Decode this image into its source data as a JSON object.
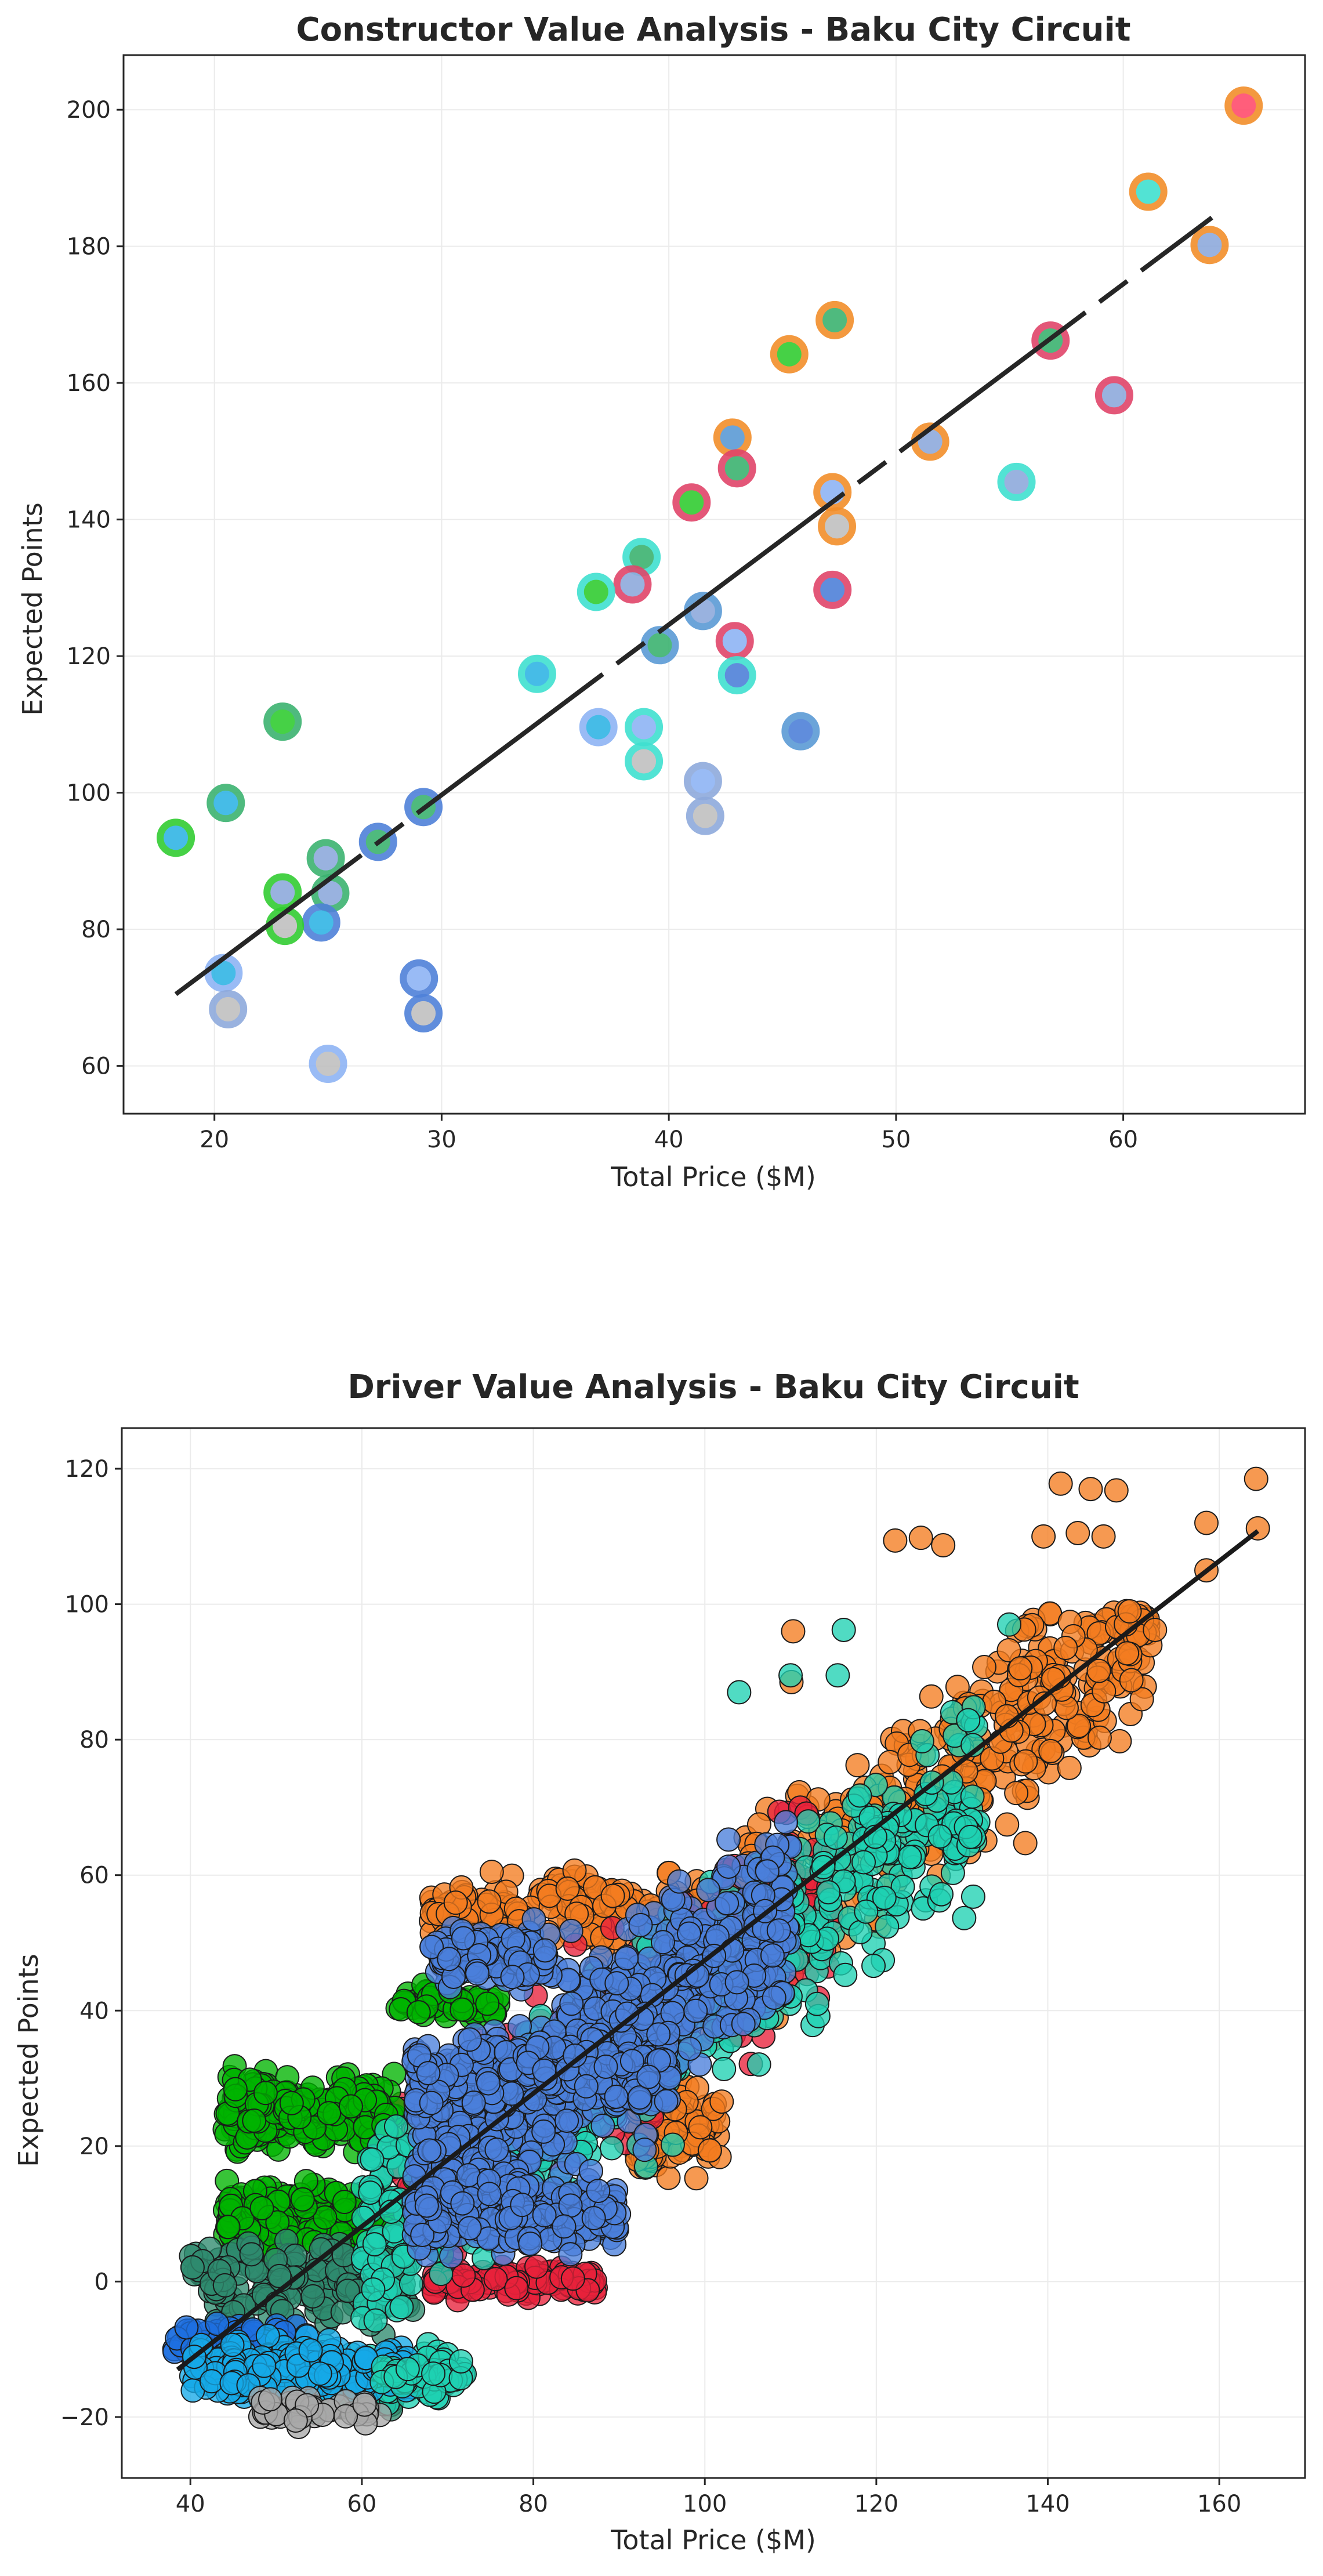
{
  "chart_data": [
    {
      "type": "scatter",
      "title": "Constructor Value Analysis - Baku City Circuit",
      "xlabel": "Total Price ($M)",
      "ylabel": "Expected Points",
      "xlim": [
        16,
        68
      ],
      "ylim": [
        53,
        208
      ],
      "xticks": [
        20,
        30,
        40,
        50,
        60
      ],
      "yticks": [
        60,
        80,
        100,
        120,
        140,
        160,
        180,
        200
      ],
      "grid": true,
      "trendline": {
        "x": [
          18.3,
          63.9
        ],
        "y": [
          70.5,
          184.2
        ],
        "style": "dashed-solid"
      },
      "points": [
        {
          "x": 65.3,
          "y": 200.6,
          "ring": "#f28e2b",
          "fill": "#ff4d6d"
        },
        {
          "x": 61.1,
          "y": 188.0,
          "ring": "#f28e2b",
          "fill": "#40e0d0"
        },
        {
          "x": 63.8,
          "y": 180.2,
          "ring": "#f28e2b",
          "fill": "#8faadc"
        },
        {
          "x": 47.3,
          "y": 169.2,
          "ring": "#f28e2b",
          "fill": "#3cb371"
        },
        {
          "x": 56.8,
          "y": 166.2,
          "ring": "#e0456a",
          "fill": "#3cb371"
        },
        {
          "x": 45.3,
          "y": 164.2,
          "ring": "#f28e2b",
          "fill": "#32cd32"
        },
        {
          "x": 59.6,
          "y": 158.2,
          "ring": "#e0456a",
          "fill": "#8faadc"
        },
        {
          "x": 42.8,
          "y": 152.0,
          "ring": "#f28e2b",
          "fill": "#5b9bd5"
        },
        {
          "x": 51.5,
          "y": 151.4,
          "ring": "#f28e2b",
          "fill": "#8faadc"
        },
        {
          "x": 43.0,
          "y": 147.5,
          "ring": "#e0456a",
          "fill": "#3cb371"
        },
        {
          "x": 55.3,
          "y": 145.5,
          "ring": "#40e0d0",
          "fill": "#8faadc"
        },
        {
          "x": 47.2,
          "y": 144.0,
          "ring": "#f28e2b",
          "fill": "#8fb4f5"
        },
        {
          "x": 41.0,
          "y": 142.5,
          "ring": "#e0456a",
          "fill": "#32cd32"
        },
        {
          "x": 47.4,
          "y": 139.0,
          "ring": "#f28e2b",
          "fill": "#c0c0c0"
        },
        {
          "x": 38.8,
          "y": 134.5,
          "ring": "#40e0d0",
          "fill": "#3cb371"
        },
        {
          "x": 38.4,
          "y": 130.5,
          "ring": "#e0456a",
          "fill": "#8faadc"
        },
        {
          "x": 47.2,
          "y": 129.7,
          "ring": "#e0456a",
          "fill": "#4f81d9"
        },
        {
          "x": 36.8,
          "y": 129.4,
          "ring": "#40e0d0",
          "fill": "#32cd32"
        },
        {
          "x": 41.5,
          "y": 126.6,
          "ring": "#5b9bd5",
          "fill": "#8faadc"
        },
        {
          "x": 42.9,
          "y": 122.2,
          "ring": "#e0456a",
          "fill": "#8fb4f5"
        },
        {
          "x": 39.6,
          "y": 121.6,
          "ring": "#5b9bd5",
          "fill": "#3cb371"
        },
        {
          "x": 34.2,
          "y": 117.4,
          "ring": "#40e0d0",
          "fill": "#33b5e5"
        },
        {
          "x": 43.0,
          "y": 117.2,
          "ring": "#40e0d0",
          "fill": "#4f81d9"
        },
        {
          "x": 36.9,
          "y": 109.6,
          "ring": "#8fb4f5",
          "fill": "#33b5e5"
        },
        {
          "x": 38.9,
          "y": 109.6,
          "ring": "#40e0d0",
          "fill": "#8fb4f5"
        },
        {
          "x": 45.8,
          "y": 109.0,
          "ring": "#5b9bd5",
          "fill": "#4f81d9"
        },
        {
          "x": 23.0,
          "y": 110.4,
          "ring": "#3cb371",
          "fill": "#32cd32"
        },
        {
          "x": 38.9,
          "y": 104.6,
          "ring": "#40e0d0",
          "fill": "#c0c0c0"
        },
        {
          "x": 41.5,
          "y": 101.7,
          "ring": "#8faadc",
          "fill": "#8fb4f5"
        },
        {
          "x": 20.5,
          "y": 98.5,
          "ring": "#3cb371",
          "fill": "#33b5e5"
        },
        {
          "x": 29.2,
          "y": 97.9,
          "ring": "#4f81d9",
          "fill": "#3cb371"
        },
        {
          "x": 41.6,
          "y": 96.6,
          "ring": "#8faadc",
          "fill": "#c0c0c0"
        },
        {
          "x": 18.3,
          "y": 93.4,
          "ring": "#32cd32",
          "fill": "#33b5e5"
        },
        {
          "x": 27.2,
          "y": 92.8,
          "ring": "#4f81d9",
          "fill": "#3cb371"
        },
        {
          "x": 24.9,
          "y": 90.4,
          "ring": "#3cb371",
          "fill": "#8faadc"
        },
        {
          "x": 23.0,
          "y": 85.4,
          "ring": "#32cd32",
          "fill": "#8faadc"
        },
        {
          "x": 25.1,
          "y": 85.3,
          "ring": "#3cb371",
          "fill": "#8faadc"
        },
        {
          "x": 24.7,
          "y": 81.0,
          "ring": "#4f81d9",
          "fill": "#33b5e5"
        },
        {
          "x": 23.1,
          "y": 80.5,
          "ring": "#32cd32",
          "fill": "#c0c0c0"
        },
        {
          "x": 20.4,
          "y": 73.6,
          "ring": "#8fb4f5",
          "fill": "#33b5e5"
        },
        {
          "x": 29.0,
          "y": 72.8,
          "ring": "#4f81d9",
          "fill": "#8fb4f5"
        },
        {
          "x": 20.6,
          "y": 68.3,
          "ring": "#8faadc",
          "fill": "#c0c0c0"
        },
        {
          "x": 29.2,
          "y": 67.7,
          "ring": "#4f81d9",
          "fill": "#c0c0c0"
        },
        {
          "x": 25.0,
          "y": 60.3,
          "ring": "#8fb4f5",
          "fill": "#c0c0c0"
        }
      ]
    },
    {
      "type": "scatter",
      "title": "Driver Value Analysis - Baku City Circuit",
      "xlabel": "Total Price ($M)",
      "ylabel": "Expected Points",
      "xlim": [
        32,
        170
      ],
      "ylim": [
        -29,
        126
      ],
      "xticks": [
        40,
        60,
        80,
        100,
        120,
        140,
        160
      ],
      "yticks": [
        -20,
        0,
        20,
        40,
        60,
        80,
        100,
        120
      ],
      "grid": true,
      "trendline": {
        "x": [
          38.5,
          164.5
        ],
        "y": [
          -13.0,
          110.8
        ]
      },
      "clusters": [
        {
          "color": "#f47c20",
          "n": 560,
          "xmin": 86,
          "xmax": 152,
          "ymin": 30,
          "ymax": 99,
          "slope": 0.95,
          "icept": -47,
          "spread": 13
        },
        {
          "color": "#f47c20",
          "n": 180,
          "xmin": 68,
          "xmax": 100,
          "ymin": 48,
          "ymax": 62,
          "slope": 0.0,
          "icept": 55,
          "spread": 5
        },
        {
          "color": "#f47c20",
          "n": 90,
          "xmin": 92,
          "xmax": 102,
          "ymin": 12,
          "ymax": 30,
          "slope": 0.0,
          "icept": 22,
          "spread": 6
        },
        {
          "color": "#e8213b",
          "n": 260,
          "xmin": 62,
          "xmax": 115,
          "ymin": -3,
          "ymax": 70,
          "slope": 0.9,
          "icept": -45,
          "spread": 16
        },
        {
          "color": "#e8213b",
          "n": 110,
          "xmin": 68,
          "xmax": 88,
          "ymin": -4,
          "ymax": 4,
          "slope": 0.0,
          "icept": 0,
          "spread": 2
        },
        {
          "color": "#00b300",
          "n": 280,
          "xmin": 44,
          "xmax": 64,
          "ymin": 16,
          "ymax": 32,
          "slope": 0.0,
          "icept": 25,
          "spread": 5
        },
        {
          "color": "#00b300",
          "n": 260,
          "xmin": 44,
          "xmax": 70,
          "ymin": 0,
          "ymax": 16,
          "slope": 0.0,
          "icept": 9,
          "spread": 5
        },
        {
          "color": "#00b300",
          "n": 60,
          "xmin": 64,
          "xmax": 76,
          "ymin": 38,
          "ymax": 44,
          "slope": 0.0,
          "icept": 41,
          "spread": 2
        },
        {
          "color": "#2e8b6e",
          "n": 180,
          "xmin": 40,
          "xmax": 66,
          "ymin": -10,
          "ymax": 8,
          "slope": 0.0,
          "icept": 0,
          "spread": 6
        },
        {
          "color": "#2e8b6e",
          "n": 70,
          "xmin": 48,
          "xmax": 64,
          "ymin": -20,
          "ymax": -12,
          "slope": 0.0,
          "icept": -16,
          "spread": 3
        },
        {
          "color": "#1fd1b2",
          "n": 640,
          "xmin": 60,
          "xmax": 132,
          "ymin": -20,
          "ymax": 90,
          "slope": 0.92,
          "icept": -50,
          "spread": 14
        },
        {
          "color": "#1fd1b2",
          "n": 120,
          "xmin": 50,
          "xmax": 72,
          "ymin": -20,
          "ymax": -8,
          "slope": 0.0,
          "icept": -14,
          "spread": 4
        },
        {
          "color": "#4a7fdb",
          "n": 640,
          "xmin": 66,
          "xmax": 110,
          "ymin": 2,
          "ymax": 70,
          "slope": 0.9,
          "icept": -43,
          "spread": 14
        },
        {
          "color": "#4a7fdb",
          "n": 260,
          "xmin": 66,
          "xmax": 90,
          "ymin": 1,
          "ymax": 19,
          "slope": 0.0,
          "icept": 10,
          "spread": 5
        },
        {
          "color": "#4a7fdb",
          "n": 240,
          "xmin": 66,
          "xmax": 96,
          "ymin": 22,
          "ymax": 40,
          "slope": 0.0,
          "icept": 31,
          "spread": 5
        },
        {
          "color": "#4a7fdb",
          "n": 120,
          "xmin": 68,
          "xmax": 82,
          "ymin": 42,
          "ymax": 54,
          "slope": 0.0,
          "icept": 48,
          "spread": 4
        },
        {
          "color": "#1e6fe0",
          "n": 70,
          "xmin": 38,
          "xmax": 54,
          "ymin": -14,
          "ymax": -5,
          "slope": 0.0,
          "icept": -9,
          "spread": 3
        },
        {
          "color": "#16a9e8",
          "n": 220,
          "xmin": 40,
          "xmax": 66,
          "ymin": -20,
          "ymax": -8,
          "slope": 0.0,
          "icept": -13,
          "spread": 4
        },
        {
          "color": "#a8a8a8",
          "n": 40,
          "xmin": 48,
          "xmax": 63,
          "ymin": -22,
          "ymax": -17,
          "slope": 0.0,
          "icept": -19,
          "spread": 2
        },
        {
          "color": "#1fd1b2",
          "n": 40,
          "xmin": 62,
          "xmax": 72,
          "ymin": -17,
          "ymax": -10,
          "slope": 0.0,
          "icept": -14,
          "spread": 2
        }
      ],
      "outliers": [
        {
          "x": 164.3,
          "y": 118.5,
          "color": "#f47c20"
        },
        {
          "x": 164.5,
          "y": 111.2,
          "color": "#f47c20"
        },
        {
          "x": 158.5,
          "y": 112.0,
          "color": "#f47c20"
        },
        {
          "x": 158.5,
          "y": 105.0,
          "color": "#f47c20"
        },
        {
          "x": 141.5,
          "y": 117.8,
          "color": "#f47c20"
        },
        {
          "x": 145.0,
          "y": 117.0,
          "color": "#f47c20"
        },
        {
          "x": 148.0,
          "y": 116.8,
          "color": "#f47c20"
        },
        {
          "x": 122.2,
          "y": 109.4,
          "color": "#f47c20"
        },
        {
          "x": 125.2,
          "y": 109.8,
          "color": "#f47c20"
        },
        {
          "x": 127.8,
          "y": 108.7,
          "color": "#f47c20"
        },
        {
          "x": 143.5,
          "y": 110.5,
          "color": "#f47c20"
        },
        {
          "x": 139.5,
          "y": 110.0,
          "color": "#f47c20"
        },
        {
          "x": 146.5,
          "y": 110.0,
          "color": "#f47c20"
        },
        {
          "x": 152.5,
          "y": 96.2,
          "color": "#f47c20"
        },
        {
          "x": 110.3,
          "y": 96.0,
          "color": "#f47c20"
        },
        {
          "x": 110.1,
          "y": 88.5,
          "color": "#f47c20"
        },
        {
          "x": 116.2,
          "y": 96.2,
          "color": "#1fd1b2"
        },
        {
          "x": 115.5,
          "y": 89.5,
          "color": "#1fd1b2"
        },
        {
          "x": 135.5,
          "y": 97.0,
          "color": "#1fd1b2"
        },
        {
          "x": 104.0,
          "y": 87.0,
          "color": "#1fd1b2"
        },
        {
          "x": 110.0,
          "y": 89.5,
          "color": "#1fd1b2"
        }
      ]
    }
  ]
}
